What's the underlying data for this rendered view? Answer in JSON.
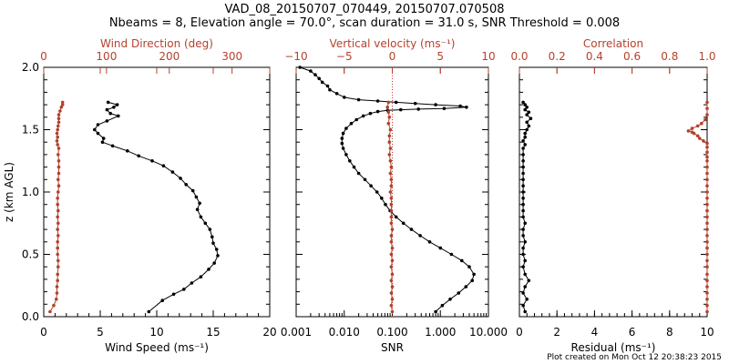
{
  "title_line1": "VAD_08_20150707_070449, 20150707.070508",
  "title_line2": "Nbeams = 8, Elevation angle = 70.0°, scan duration = 31.0 s, SNR Threshold = 0.008",
  "footer": "Plot created on Mon Oct 12 20:38:23 2015",
  "colors": {
    "black": "#000000",
    "red": "#b5412d",
    "dotted": "#c0392b"
  },
  "chart_data": [
    {
      "type": "line",
      "name": "wind-panel",
      "ylabel": "z (km AGL)",
      "ylim": [
        0,
        2.0
      ],
      "yticks": [
        0.0,
        0.5,
        1.0,
        1.5,
        2.0
      ],
      "ytick_labels": [
        "0.0",
        "0.5",
        "1.0",
        "1.5",
        "2.0"
      ],
      "xlabel": "Wind Speed (ms⁻¹)",
      "xlim": [
        0,
        20
      ],
      "xticks": [
        0,
        5,
        10,
        15,
        20
      ],
      "xtick_labels": [
        "0",
        "5",
        "10",
        "15",
        "20"
      ],
      "top_axis_label": "Wind Direction (deg)",
      "top_lim": [
        0,
        360
      ],
      "top_ticks": [
        0,
        100,
        200,
        300
      ],
      "top_tick_labels": [
        "0",
        "100",
        "200",
        "300"
      ],
      "series": [
        {
          "name": "Wind Speed",
          "color": "black",
          "axis": "bottom",
          "x": [
            9.3,
            10.5,
            11.5,
            12.4,
            13.1,
            13.9,
            14.6,
            15.1,
            15.4,
            15.3,
            15.0,
            14.9,
            14.7,
            14.3,
            13.9,
            13.6,
            13.8,
            13.5,
            13.2,
            12.6,
            12.1,
            11.4,
            10.6,
            9.6,
            8.4,
            7.4,
            6.1,
            5.2,
            5.3,
            4.8,
            4.5,
            4.8,
            5.6,
            6.6,
            5.9,
            5.6,
            6.2,
            6.5,
            5.7
          ],
          "y": [
            0.04,
            0.13,
            0.18,
            0.22,
            0.27,
            0.32,
            0.38,
            0.43,
            0.49,
            0.54,
            0.59,
            0.64,
            0.7,
            0.75,
            0.8,
            0.86,
            0.91,
            0.96,
            1.01,
            1.06,
            1.11,
            1.16,
            1.21,
            1.25,
            1.29,
            1.33,
            1.37,
            1.4,
            1.43,
            1.47,
            1.5,
            1.54,
            1.57,
            1.61,
            1.63,
            1.66,
            1.68,
            1.7,
            1.72
          ]
        },
        {
          "name": "Wind Direction",
          "color": "red",
          "axis": "top",
          "x": [
            10,
            16,
            20,
            21,
            21,
            22,
            22,
            23,
            23,
            22,
            22,
            22,
            23,
            22,
            23,
            22,
            23,
            22,
            22,
            23,
            24,
            23,
            24,
            24,
            24,
            23,
            24,
            22,
            21,
            22,
            21,
            22,
            23,
            24,
            24,
            24,
            26,
            28,
            30,
            30
          ],
          "y": [
            0.04,
            0.09,
            0.14,
            0.19,
            0.24,
            0.29,
            0.34,
            0.4,
            0.45,
            0.5,
            0.55,
            0.6,
            0.65,
            0.7,
            0.75,
            0.8,
            0.85,
            0.9,
            0.95,
            1.0,
            1.05,
            1.1,
            1.15,
            1.2,
            1.25,
            1.3,
            1.35,
            1.38,
            1.41,
            1.44,
            1.47,
            1.5,
            1.53,
            1.56,
            1.59,
            1.62,
            1.65,
            1.68,
            1.7,
            1.72
          ]
        }
      ]
    },
    {
      "type": "line",
      "name": "snr-panel",
      "xscale": "log",
      "xlabel": "SNR",
      "xlim": [
        0.001,
        10
      ],
      "xticks": [
        0.001,
        0.01,
        0.1,
        1,
        10
      ],
      "xtick_labels": [
        "0.001",
        "0.010",
        "0.100",
        "1.000",
        "10.000"
      ],
      "top_axis_label": "Vertical velocity (ms⁻¹)",
      "top_lim": [
        -10,
        10
      ],
      "top_ticks": [
        -10,
        -5,
        0,
        5,
        10
      ],
      "top_tick_labels": [
        "−10",
        "−5",
        "0",
        "5",
        "10"
      ],
      "ylim": [
        0,
        2.0
      ],
      "series": [
        {
          "name": "SNR",
          "color": "black",
          "axis": "bottom",
          "x": [
            0.8,
            1.1,
            1.6,
            2.4,
            3.4,
            4.6,
            5.0,
            4.0,
            2.8,
            1.7,
            1.0,
            0.6,
            0.38,
            0.25,
            0.17,
            0.12,
            0.09,
            0.072,
            0.06,
            0.048,
            0.036,
            0.027,
            0.02,
            0.016,
            0.013,
            0.011,
            0.0095,
            0.009,
            0.009,
            0.0095,
            0.011,
            0.014,
            0.018,
            0.025,
            0.035,
            0.05,
            0.08,
            0.15,
            0.35,
            1.2,
            3.5,
            2.6,
            0.8,
            0.3,
            0.12,
            0.05,
            0.02,
            0.01,
            0.007,
            0.005,
            0.0045,
            0.0035,
            0.003,
            0.0025,
            0.002,
            0.0012
          ],
          "y": [
            0.04,
            0.09,
            0.14,
            0.19,
            0.24,
            0.29,
            0.34,
            0.4,
            0.45,
            0.5,
            0.55,
            0.6,
            0.65,
            0.7,
            0.75,
            0.8,
            0.85,
            0.9,
            0.95,
            1.0,
            1.05,
            1.1,
            1.15,
            1.2,
            1.25,
            1.3,
            1.35,
            1.39,
            1.43,
            1.47,
            1.51,
            1.55,
            1.58,
            1.61,
            1.63,
            1.645,
            1.655,
            1.66,
            1.665,
            1.67,
            1.68,
            1.69,
            1.7,
            1.71,
            1.72,
            1.73,
            1.74,
            1.76,
            1.79,
            1.82,
            1.85,
            1.88,
            1.91,
            1.94,
            1.97,
            2.0
          ]
        },
        {
          "name": "Vertical velocity",
          "color": "red",
          "axis": "top",
          "x": [
            0.0,
            -0.1,
            0.0,
            -0.1,
            0.0,
            -0.1,
            0.0,
            -0.1,
            0.0,
            -0.1,
            0.0,
            -0.1,
            -0.1,
            0.0,
            -0.1,
            -0.1,
            -0.1,
            -0.1,
            -0.1,
            -0.2,
            -0.1,
            -0.1,
            -0.2,
            -0.1,
            -0.2,
            -0.3,
            -0.2,
            -0.3,
            -0.3,
            -0.2,
            -0.4,
            -0.3,
            -0.4,
            -0.5,
            -0.4
          ],
          "y": [
            0.04,
            0.09,
            0.14,
            0.19,
            0.24,
            0.29,
            0.34,
            0.4,
            0.45,
            0.5,
            0.55,
            0.6,
            0.65,
            0.7,
            0.75,
            0.8,
            0.85,
            0.9,
            0.95,
            1.0,
            1.05,
            1.1,
            1.15,
            1.2,
            1.25,
            1.3,
            1.35,
            1.4,
            1.45,
            1.5,
            1.55,
            1.6,
            1.64,
            1.68,
            1.72
          ]
        }
      ],
      "reference_line": {
        "axis": "top",
        "value": 0
      }
    },
    {
      "type": "line",
      "name": "residual-panel",
      "xlabel": "Residual (ms⁻¹)",
      "xlim": [
        0,
        10
      ],
      "xticks": [
        0,
        2,
        4,
        6,
        8,
        10
      ],
      "xtick_labels": [
        "0",
        "2",
        "4",
        "6",
        "8",
        "10"
      ],
      "top_axis_label": "Correlation",
      "top_lim": [
        0,
        1.0
      ],
      "top_ticks": [
        0.0,
        0.2,
        0.4,
        0.6,
        0.8,
        1.0
      ],
      "top_tick_labels": [
        "0.0",
        "0.2",
        "0.4",
        "0.6",
        "0.8",
        "1.0"
      ],
      "ylim": [
        0,
        2.0
      ],
      "series": [
        {
          "name": "Residual",
          "color": "black",
          "axis": "bottom",
          "x": [
            0.3,
            0.2,
            0.4,
            0.2,
            0.3,
            0.5,
            0.3,
            0.2,
            0.3,
            0.2,
            0.2,
            0.3,
            0.2,
            0.2,
            0.3,
            0.2,
            0.2,
            0.2,
            0.2,
            0.2,
            0.2,
            0.2,
            0.2,
            0.2,
            0.2,
            0.2,
            0.2,
            0.3,
            0.2,
            0.3,
            0.3,
            0.4,
            0.5,
            0.4,
            0.6,
            0.4,
            0.5,
            0.3,
            0.4,
            0.3,
            0.2
          ],
          "y": [
            0.04,
            0.09,
            0.14,
            0.19,
            0.24,
            0.29,
            0.34,
            0.4,
            0.45,
            0.5,
            0.55,
            0.6,
            0.65,
            0.7,
            0.75,
            0.8,
            0.85,
            0.9,
            0.95,
            1.0,
            1.05,
            1.1,
            1.15,
            1.2,
            1.25,
            1.3,
            1.35,
            1.38,
            1.41,
            1.44,
            1.47,
            1.5,
            1.53,
            1.56,
            1.59,
            1.62,
            1.64,
            1.66,
            1.68,
            1.7,
            1.72
          ]
        },
        {
          "name": "Correlation",
          "color": "red",
          "axis": "top",
          "x": [
            1.0,
            1.0,
            1.0,
            1.0,
            1.0,
            1.0,
            1.0,
            1.0,
            1.0,
            1.0,
            1.0,
            1.0,
            1.0,
            1.0,
            1.0,
            1.0,
            1.0,
            1.0,
            1.0,
            1.0,
            1.0,
            1.0,
            1.0,
            1.0,
            1.0,
            1.0,
            1.0,
            1.0,
            1.0,
            0.98,
            0.96,
            0.95,
            0.93,
            0.92,
            0.9,
            0.92,
            0.95,
            0.97,
            0.99,
            1.0,
            1.0,
            1.0
          ],
          "y": [
            0.04,
            0.09,
            0.14,
            0.19,
            0.24,
            0.29,
            0.34,
            0.4,
            0.45,
            0.5,
            0.55,
            0.6,
            0.65,
            0.7,
            0.75,
            0.8,
            0.85,
            0.9,
            0.95,
            1.0,
            1.05,
            1.1,
            1.15,
            1.2,
            1.25,
            1.28,
            1.32,
            1.36,
            1.39,
            1.41,
            1.43,
            1.45,
            1.47,
            1.48,
            1.49,
            1.51,
            1.53,
            1.55,
            1.58,
            1.62,
            1.67,
            1.72
          ]
        }
      ]
    }
  ]
}
